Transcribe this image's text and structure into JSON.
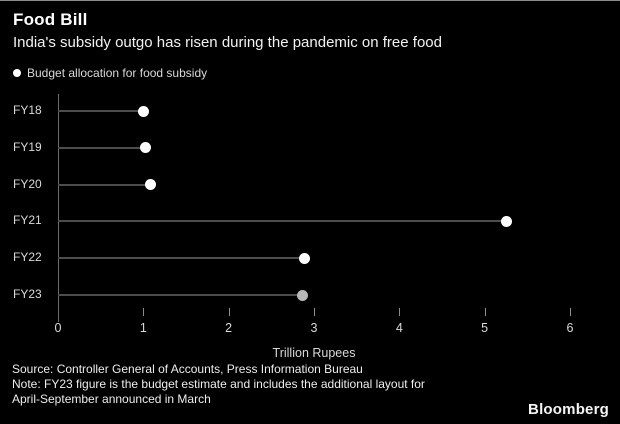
{
  "header": {
    "title": "Food Bill",
    "subtitle": "India's subsidy outgo has risen during the pandemic on free food",
    "legend_label": "Budget allocation for food subsidy"
  },
  "chart_data": {
    "type": "bar",
    "variant": "horizontal-lollipop",
    "categories": [
      "FY18",
      "FY19",
      "FY20",
      "FY21",
      "FY22",
      "FY23"
    ],
    "values": [
      1.0,
      1.02,
      1.08,
      5.25,
      2.89,
      2.87
    ],
    "series_name": "Budget allocation for food subsidy",
    "title": "Food Bill",
    "subtitle": "India's subsidy outgo has risen during the pandemic on free food",
    "xlabel": "Trillion Rupees",
    "ylabel": "",
    "xlim": [
      0,
      6
    ],
    "xticks": [
      "0",
      "1",
      "2",
      "3",
      "4",
      "5",
      "6"
    ],
    "grid": false,
    "legend_position": "top-left",
    "dot_colors": [
      "#ffffff",
      "#ffffff",
      "#ffffff",
      "#ffffff",
      "#ffffff",
      "#b8b8b8"
    ]
  },
  "footer": {
    "source_line": "Source: Controller General of Accounts, Press Information Bureau",
    "note_line1": "Note: FY23 figure is the budget estimate and includes the additional layout for",
    "note_line2": "April-September announced in March",
    "brand": "Bloomberg"
  },
  "colors": {
    "background": "#000000",
    "title_text": "#ffffff",
    "secondary_text": "#d9d9d9",
    "stem": "#4d4d4d",
    "axis": "#6b6b6b",
    "dot": "#ffffff",
    "dot_estimate": "#b8b8b8"
  }
}
